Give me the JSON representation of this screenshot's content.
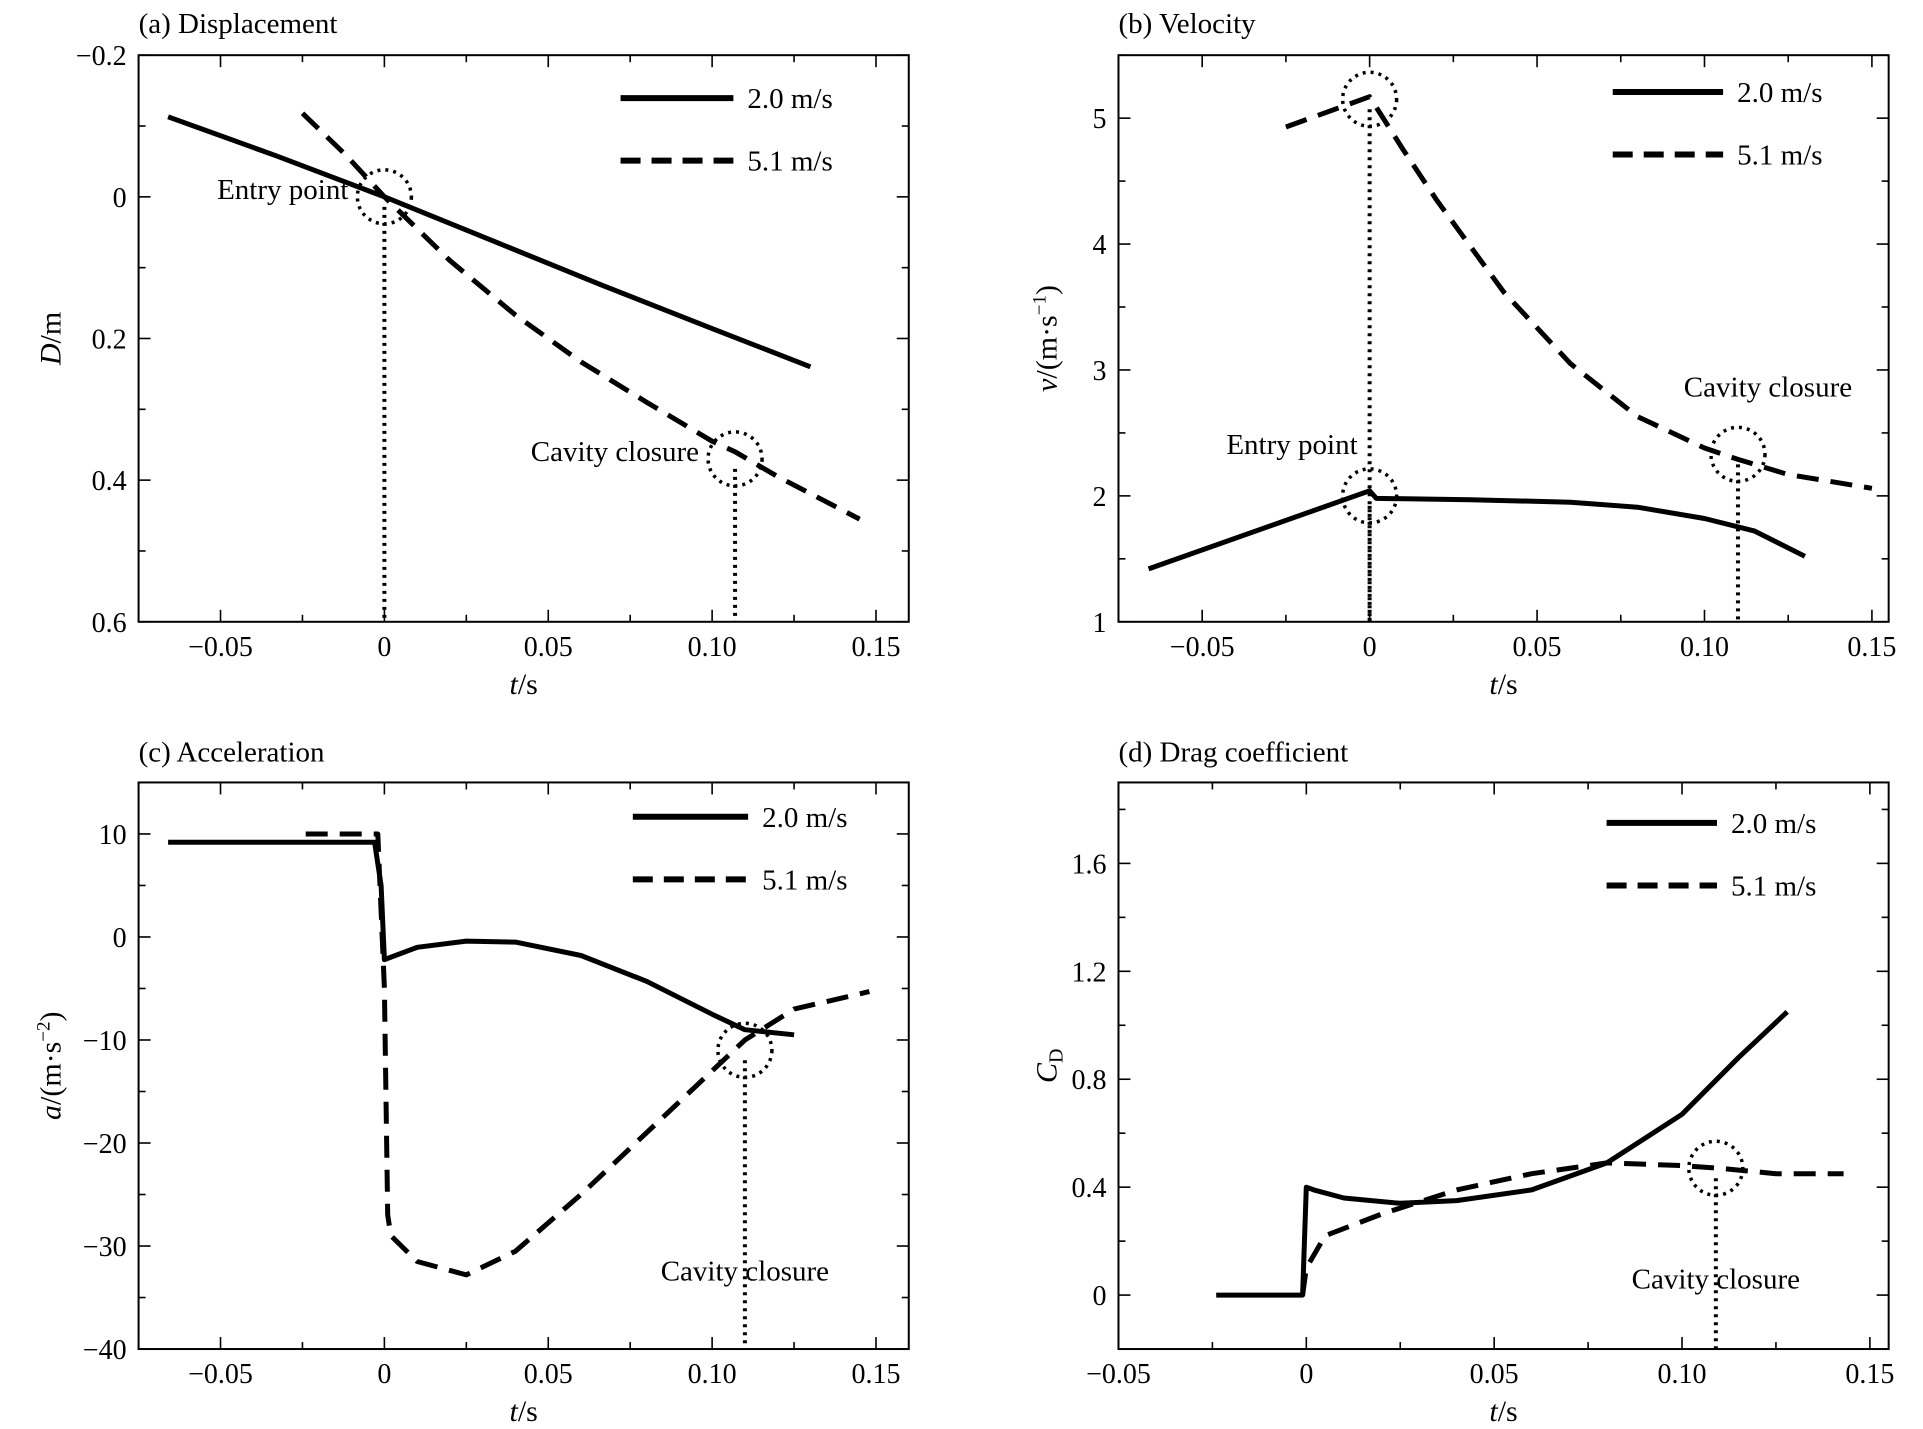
{
  "chart_data": [
    {
      "type": "line",
      "title": "(a) Displacement",
      "xlabel_italic": "t",
      "xlabel_unit": "/s",
      "ylabel_italic": "D",
      "ylabel_unit": "/m",
      "xlim": [
        -0.075,
        0.16
      ],
      "ylim": [
        -0.2,
        0.6
      ],
      "y_inverted": true,
      "xticks": [
        -0.05,
        0,
        0.05,
        0.1,
        0.15
      ],
      "xtick_labels": [
        "−0.05",
        "0",
        "0.05",
        "0.10",
        "0.15"
      ],
      "yticks": [
        -0.2,
        0,
        0.2,
        0.4,
        0.6
      ],
      "ytick_labels": [
        "−0.2",
        "0",
        "0.2",
        "0.4",
        "0.6"
      ],
      "legend_position": "top-right",
      "series": [
        {
          "name": "2.0 m/s",
          "style": "solid",
          "x": [
            -0.066,
            -0.033,
            0,
            0.033,
            0.066,
            0.1,
            0.13
          ],
          "y": [
            -0.113,
            -0.058,
            0,
            0.062,
            0.124,
            0.186,
            0.24
          ]
        },
        {
          "name": "5.1 m/s",
          "style": "dashed",
          "x": [
            -0.025,
            -0.012,
            0,
            0.02,
            0.04,
            0.06,
            0.08,
            0.1,
            0.107,
            0.12,
            0.145
          ],
          "y": [
            -0.118,
            -0.06,
            0,
            0.09,
            0.167,
            0.233,
            0.29,
            0.345,
            0.36,
            0.395,
            0.455
          ]
        }
      ],
      "markers": [
        {
          "label": "Entry point",
          "x": 0,
          "y": 0,
          "label_side": "left"
        },
        {
          "label": "Cavity closure",
          "x": 0.107,
          "y": 0.37,
          "label_side": "left"
        }
      ]
    },
    {
      "type": "line",
      "title": "(b) Velocity",
      "xlabel_italic": "t",
      "xlabel_unit": "/s",
      "ylabel_italic": "v",
      "ylabel_unit": "/(m·s",
      "ylabel_sup": "−1",
      "ylabel_tail": ")",
      "xlim": [
        -0.075,
        0.155
      ],
      "ylim": [
        1,
        5.5
      ],
      "y_inverted": false,
      "xticks": [
        -0.05,
        0,
        0.05,
        0.1,
        0.15
      ],
      "xtick_labels": [
        "−0.05",
        "0",
        "0.05",
        "0.10",
        "0.15"
      ],
      "yticks": [
        1,
        2,
        3,
        4,
        5
      ],
      "ytick_labels": [
        "1",
        "2",
        "3",
        "4",
        "5"
      ],
      "legend_position": "top-right",
      "series": [
        {
          "name": "2.0 m/s",
          "style": "solid",
          "x": [
            -0.066,
            0,
            0.002,
            0.03,
            0.06,
            0.08,
            0.1,
            0.115,
            0.13
          ],
          "y": [
            1.42,
            2.04,
            1.98,
            1.97,
            1.95,
            1.91,
            1.82,
            1.72,
            1.52
          ]
        },
        {
          "name": "5.1 m/s",
          "style": "dashed",
          "x": [
            -0.025,
            0,
            0.01,
            0.02,
            0.04,
            0.06,
            0.08,
            0.1,
            0.11,
            0.125,
            0.15
          ],
          "y": [
            4.93,
            5.17,
            4.75,
            4.35,
            3.62,
            3.05,
            2.63,
            2.38,
            2.29,
            2.17,
            2.06
          ]
        }
      ],
      "markers": [
        {
          "label": "",
          "x": 0,
          "y": 5.15,
          "label_side": "none"
        },
        {
          "label": "Entry point",
          "x": 0,
          "y": 2.0,
          "label_side": "left"
        },
        {
          "label": "Cavity closure",
          "x": 0.11,
          "y": 2.33,
          "label_side": "right"
        }
      ]
    },
    {
      "type": "line",
      "title": "(c) Acceleration",
      "xlabel_italic": "t",
      "xlabel_unit": "/s",
      "ylabel_italic": "a",
      "ylabel_unit": "/(m·s",
      "ylabel_sup": "−2",
      "ylabel_tail": ")",
      "xlim": [
        -0.075,
        0.16
      ],
      "ylim": [
        -40,
        15
      ],
      "y_inverted": false,
      "xticks": [
        -0.05,
        0,
        0.05,
        0.1,
        0.15
      ],
      "xtick_labels": [
        "−0.05",
        "0",
        "0.05",
        "0.10",
        "0.15"
      ],
      "yticks": [
        -40,
        -30,
        -20,
        -10,
        0,
        10
      ],
      "ytick_labels": [
        "−40",
        "−30",
        "−20",
        "−10",
        "0",
        "10"
      ],
      "legend_position": "top-right",
      "series": [
        {
          "name": "2.0 m/s",
          "style": "solid",
          "x": [
            -0.066,
            -0.003,
            -0.001,
            0,
            0.01,
            0.025,
            0.04,
            0.06,
            0.08,
            0.1,
            0.11,
            0.125
          ],
          "y": [
            9.2,
            9.2,
            5,
            -2.2,
            -1.0,
            -0.4,
            -0.5,
            -1.8,
            -4.3,
            -7.5,
            -9.0,
            -9.5
          ]
        },
        {
          "name": "5.1 m/s",
          "style": "dashed",
          "x": [
            -0.024,
            -0.002,
            0,
            0.001,
            0.002,
            0.01,
            0.025,
            0.04,
            0.06,
            0.08,
            0.1,
            0.11,
            0.125,
            0.148
          ],
          "y": [
            10,
            10,
            -5,
            -27,
            -29,
            -31.5,
            -32.8,
            -30.5,
            -25,
            -19,
            -13,
            -10,
            -7,
            -5.3
          ]
        }
      ],
      "markers": [
        {
          "label": "Cavity closure",
          "x": 0.11,
          "y": -11,
          "label_side": "below"
        }
      ]
    },
    {
      "type": "line",
      "title": "(d) Drag coefficient",
      "xlabel_italic": "t",
      "xlabel_unit": "/s",
      "ylabel_italic": "C",
      "ylabel_sub": "D",
      "xlim": [
        -0.05,
        0.155
      ],
      "ylim": [
        -0.2,
        1.9
      ],
      "y_inverted": false,
      "xticks": [
        -0.05,
        0,
        0.05,
        0.1,
        0.15
      ],
      "xtick_labels": [
        "−0.05",
        "0",
        "0.05",
        "0.10",
        "0.15"
      ],
      "yticks": [
        0,
        0.4,
        0.8,
        1.2,
        1.6
      ],
      "ytick_labels": [
        "0",
        "0.4",
        "0.8",
        "1.2",
        "1.6"
      ],
      "legend_position": "top-right",
      "series": [
        {
          "name": "2.0 m/s",
          "style": "solid",
          "x": [
            -0.024,
            -0.001,
            0,
            0.002,
            0.01,
            0.025,
            0.04,
            0.06,
            0.08,
            0.1,
            0.115,
            0.128
          ],
          "y": [
            0,
            0,
            0.4,
            0.39,
            0.36,
            0.34,
            0.35,
            0.39,
            0.49,
            0.67,
            0.88,
            1.05
          ]
        },
        {
          "name": "5.1 m/s",
          "style": "dashed",
          "x": [
            -0.001,
            0,
            0.005,
            0.02,
            0.04,
            0.06,
            0.08,
            0.1,
            0.11,
            0.125,
            0.143
          ],
          "y": [
            0,
            0.1,
            0.22,
            0.3,
            0.39,
            0.45,
            0.49,
            0.48,
            0.47,
            0.45,
            0.45
          ]
        }
      ],
      "markers": [
        {
          "label": "Cavity closure",
          "x": 0.109,
          "y": 0.47,
          "label_side": "below"
        }
      ]
    }
  ]
}
